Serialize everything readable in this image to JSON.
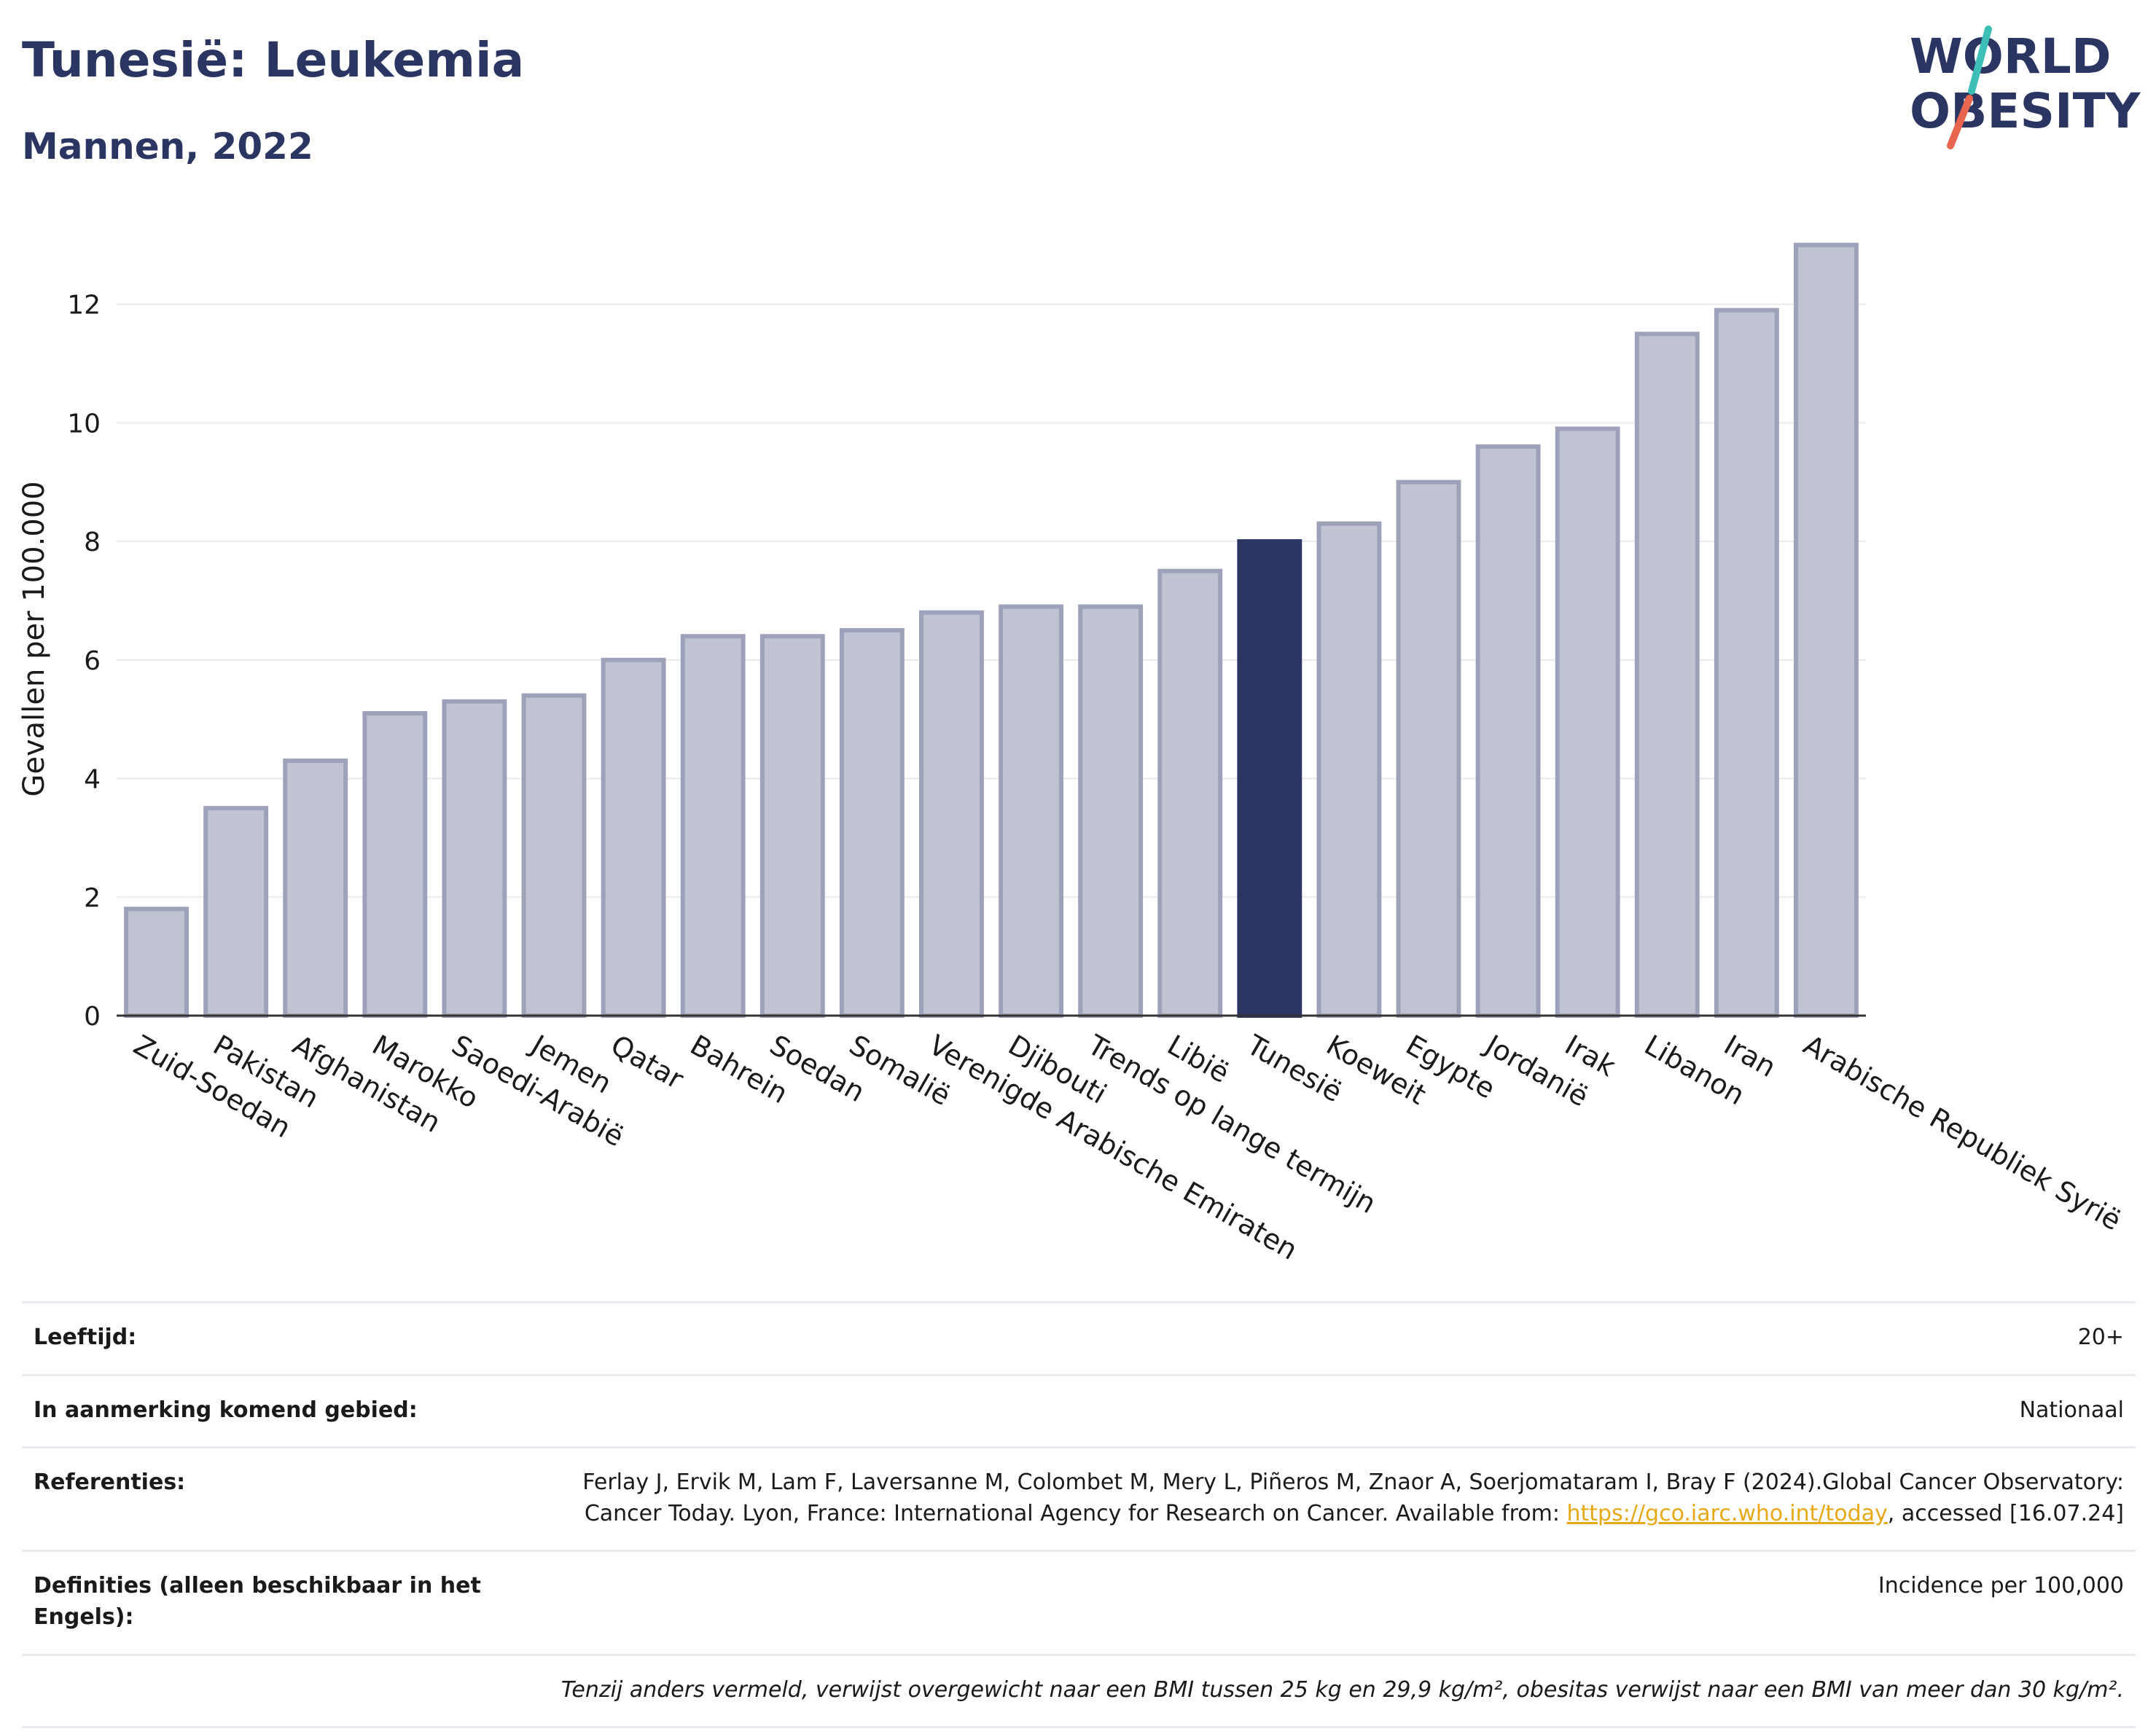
{
  "title": "Tunesië: Leukemia",
  "subtitle": "Mannen, 2022",
  "logo": {
    "line1": "WORLD",
    "line2": "OBESITY"
  },
  "colors": {
    "highlight": "#2b3561",
    "bar_fill": "#c0c3d1",
    "bar_stroke": "#9da2ba",
    "title": "#2b3561",
    "link": "#e6a817"
  },
  "chart_data": {
    "type": "bar",
    "ylabel": "Gevallen per 100.000",
    "xlabel": "",
    "ylim": [
      0,
      13.2
    ],
    "yticks": [
      0,
      2,
      4,
      6,
      8,
      10,
      12
    ],
    "grid": true,
    "highlight": "Tunesië",
    "categories": [
      "Zuid-Soedan",
      "Pakistan",
      "Afghanistan",
      "Marokko",
      "Saoedi-Arabië",
      "Jemen",
      "Qatar",
      "Bahrein",
      "Soedan",
      "Somalië",
      "Verenigde Arabische Emiraten",
      "Djibouti",
      "Trends op lange termijn",
      "Libië",
      "Tunesië",
      "Koeweit",
      "Egypte",
      "Jordanië",
      "Irak",
      "Libanon",
      "Iran",
      "Arabische Republiek Syrië"
    ],
    "values": [
      1.8,
      3.5,
      4.3,
      5.1,
      5.3,
      5.4,
      6.0,
      6.4,
      6.4,
      6.5,
      6.8,
      6.9,
      6.9,
      7.5,
      8.0,
      8.3,
      9.0,
      9.6,
      9.9,
      11.5,
      11.9,
      13.0
    ]
  },
  "info": {
    "age_label": "Leeftijd:",
    "age_value": "20+",
    "area_label": "In aanmerking komend gebied:",
    "area_value": "Nationaal",
    "ref_label": "Referenties:",
    "ref_text_1": "Ferlay J, Ervik M, Lam F, Laversanne M, Colombet M, Mery L, Piñeros M, Znaor A, Soerjomataram I, Bray F (2024).Global Cancer Observatory: Cancer Today. Lyon, France: International Agency for Research on Cancer. Available from: ",
    "ref_link": "https://gco.iarc.who.int/today",
    "ref_text_2": ", accessed [16.07.24]",
    "def_label": "Definities (alleen beschikbaar in het Engels):",
    "def_value": "Incidence per 100,000",
    "note": "Tenzij anders vermeld, verwijst overgewicht naar een BMI tussen 25 kg en 29,9 kg/m², obesitas verwijst naar een BMI van meer dan 30 kg/m²."
  }
}
